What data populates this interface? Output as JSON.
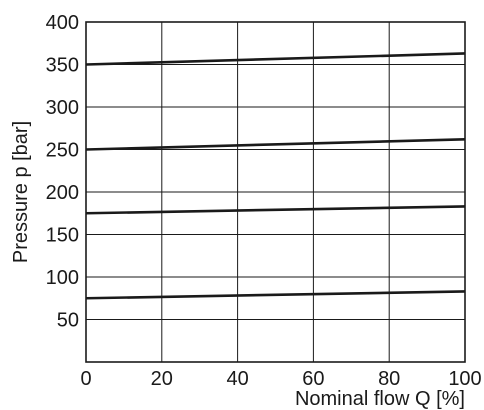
{
  "chart_data": {
    "type": "line",
    "xlabel": "Nominal flow Q [%]",
    "ylabel": "Pressure p [bar]",
    "xlim": [
      0,
      100
    ],
    "ylim": [
      0,
      400
    ],
    "x_ticks": [
      0,
      20,
      40,
      60,
      80,
      100
    ],
    "y_ticks": [
      50,
      100,
      150,
      200,
      250,
      300,
      350,
      400
    ],
    "y_grid": [
      50,
      100,
      150,
      200,
      250,
      300,
      350,
      400
    ],
    "grid": true,
    "series": [
      {
        "x": [
          0,
          100
        ],
        "values": [
          350,
          363
        ]
      },
      {
        "x": [
          0,
          100
        ],
        "values": [
          250,
          262
        ]
      },
      {
        "x": [
          0,
          100
        ],
        "values": [
          175,
          183
        ]
      },
      {
        "x": [
          0,
          100
        ],
        "values": [
          75,
          83
        ]
      }
    ]
  }
}
